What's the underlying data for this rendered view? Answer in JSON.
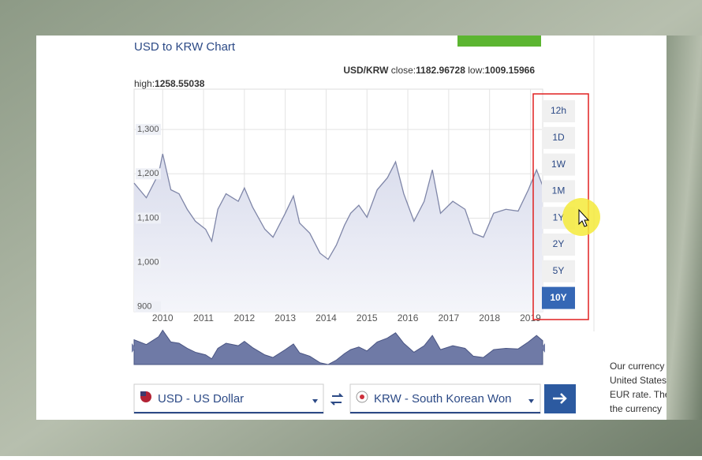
{
  "header": {
    "title": "USD to KRW Chart"
  },
  "stats": {
    "pair": "USD/KRW",
    "close_label": "close:",
    "close": 1182.96728,
    "low_label": "low:",
    "low": 1009.15966,
    "high_label": "high:",
    "high": 1258.55038
  },
  "chart_data": {
    "type": "line",
    "color": "#7f86a8",
    "fill": "#e4e6f1",
    "grid": true,
    "x": [
      2009.3,
      2009.6,
      2009.9,
      2010.0,
      2010.2,
      2010.4,
      2010.6,
      2010.8,
      2011.05,
      2011.2,
      2011.35,
      2011.55,
      2011.85,
      2012.0,
      2012.2,
      2012.5,
      2012.7,
      2013.0,
      2013.2,
      2013.35,
      2013.6,
      2013.85,
      2014.05,
      2014.25,
      2014.45,
      2014.6,
      2014.8,
      2015.0,
      2015.25,
      2015.5,
      2015.7,
      2015.9,
      2016.15,
      2016.4,
      2016.6,
      2016.8,
      2017.1,
      2017.4,
      2017.6,
      2017.85,
      2018.1,
      2018.4,
      2018.7,
      2018.95,
      2019.15,
      2019.3
    ],
    "values": [
      1179,
      1146,
      1200,
      1245,
      1164,
      1155,
      1120,
      1093,
      1075,
      1048,
      1120,
      1155,
      1138,
      1168,
      1125,
      1075,
      1057,
      1111,
      1150,
      1089,
      1066,
      1021,
      1007,
      1039,
      1084,
      1111,
      1129,
      1102,
      1164,
      1191,
      1227,
      1155,
      1093,
      1138,
      1209,
      1111,
      1138,
      1120,
      1066,
      1057,
      1111,
      1120,
      1116,
      1164,
      1209,
      1173
    ],
    "xlim": [
      2009.3,
      2019.3
    ],
    "xticks": [
      2010,
      2011,
      2012,
      2013,
      2014,
      2015,
      2016,
      2017,
      2018,
      2019
    ],
    "ylim": [
      889,
      1391
    ],
    "yticks": [
      900,
      {
        "value": 1000,
        "label": "1,000"
      },
      {
        "value": 1100,
        "label": "1,100"
      },
      {
        "value": 1200,
        "label": "1,200"
      },
      {
        "value": 1300,
        "label": "1,300"
      }
    ]
  },
  "range_buttons": [
    "12h",
    "1D",
    "1W",
    "1M",
    "1Y",
    "2Y",
    "5Y",
    "10Y"
  ],
  "active_range": 7,
  "converter": {
    "from": "USD - US Dollar",
    "to": "KRW - South Korean Won"
  },
  "side_text": [
    "Our currency",
    "United States",
    "EUR rate. The",
    "the currency"
  ]
}
